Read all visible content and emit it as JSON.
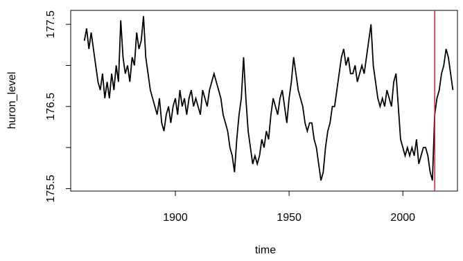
{
  "chart_data": {
    "type": "line",
    "xlabel": "time",
    "ylabel": "huron_level",
    "x": [
      1860,
      1861,
      1862,
      1863,
      1864,
      1865,
      1866,
      1867,
      1868,
      1869,
      1870,
      1871,
      1872,
      1873,
      1874,
      1875,
      1876,
      1877,
      1878,
      1879,
      1880,
      1881,
      1882,
      1883,
      1884,
      1885,
      1886,
      1887,
      1888,
      1889,
      1890,
      1891,
      1892,
      1893,
      1894,
      1895,
      1896,
      1897,
      1898,
      1899,
      1900,
      1901,
      1902,
      1903,
      1904,
      1905,
      1906,
      1907,
      1908,
      1909,
      1910,
      1911,
      1912,
      1913,
      1914,
      1915,
      1916,
      1917,
      1918,
      1919,
      1920,
      1921,
      1922,
      1923,
      1924,
      1925,
      1926,
      1927,
      1928,
      1929,
      1930,
      1931,
      1932,
      1933,
      1934,
      1935,
      1936,
      1937,
      1938,
      1939,
      1940,
      1941,
      1942,
      1943,
      1944,
      1945,
      1946,
      1947,
      1948,
      1949,
      1950,
      1951,
      1952,
      1953,
      1954,
      1955,
      1956,
      1957,
      1958,
      1959,
      1960,
      1961,
      1962,
      1963,
      1964,
      1965,
      1966,
      1967,
      1968,
      1969,
      1970,
      1971,
      1972,
      1973,
      1974,
      1975,
      1976,
      1977,
      1978,
      1979,
      1980,
      1981,
      1982,
      1983,
      1984,
      1985,
      1986,
      1987,
      1988,
      1989,
      1990,
      1991,
      1992,
      1993,
      1994,
      1995,
      1996,
      1997,
      1998,
      1999,
      2000,
      2001,
      2002,
      2003,
      2004,
      2005,
      2006,
      2007,
      2008,
      2009,
      2010,
      2011,
      2012,
      2013,
      2014,
      2015,
      2016,
      2017,
      2018,
      2019,
      2020,
      2021,
      2022
    ],
    "series": [
      {
        "name": "huron_level",
        "color": "#000000",
        "values": [
          177.3,
          177.45,
          177.2,
          177.4,
          177.2,
          177.0,
          176.8,
          176.7,
          176.9,
          176.6,
          176.8,
          176.6,
          176.9,
          176.7,
          177.0,
          176.8,
          177.55,
          177.1,
          176.9,
          177.0,
          176.8,
          177.1,
          177.0,
          177.4,
          177.2,
          177.3,
          177.6,
          177.1,
          176.9,
          176.7,
          176.6,
          176.5,
          176.4,
          176.6,
          176.3,
          176.2,
          176.4,
          176.5,
          176.3,
          176.5,
          176.6,
          176.4,
          176.7,
          176.5,
          176.6,
          176.4,
          176.6,
          176.7,
          176.5,
          176.6,
          176.5,
          176.4,
          176.7,
          176.6,
          176.5,
          176.7,
          176.8,
          176.9,
          176.8,
          176.7,
          176.6,
          176.4,
          176.3,
          176.2,
          176.0,
          175.9,
          175.7,
          176.1,
          176.4,
          176.6,
          177.1,
          176.6,
          176.2,
          176.0,
          175.8,
          175.9,
          175.8,
          175.9,
          176.1,
          176.0,
          176.2,
          176.1,
          176.4,
          176.6,
          176.5,
          176.4,
          176.6,
          176.7,
          176.5,
          176.3,
          176.6,
          176.8,
          177.1,
          176.9,
          176.7,
          176.6,
          176.5,
          176.3,
          176.2,
          176.3,
          176.3,
          176.1,
          176.0,
          175.8,
          175.6,
          175.7,
          176.0,
          176.2,
          176.3,
          176.5,
          176.5,
          176.7,
          176.9,
          177.1,
          177.2,
          177.0,
          177.1,
          176.9,
          176.9,
          177.0,
          176.8,
          176.9,
          177.0,
          176.9,
          177.1,
          177.3,
          177.5,
          177.0,
          176.8,
          176.6,
          176.5,
          176.6,
          176.5,
          176.7,
          176.6,
          176.5,
          176.8,
          176.9,
          176.5,
          176.1,
          176.0,
          175.9,
          176.0,
          175.9,
          176.0,
          175.9,
          176.1,
          175.8,
          175.9,
          176.0,
          176.0,
          175.9,
          175.7,
          175.6,
          176.4,
          176.6,
          176.7,
          176.9,
          177.0,
          177.2,
          177.1,
          176.9,
          176.7
        ]
      }
    ],
    "xlim": [
      1854,
      2024
    ],
    "xticks": [
      1900,
      1950,
      2000
    ],
    "ylim": [
      175.47,
      177.67
    ],
    "yticks": [
      175.5,
      176.5,
      177.5
    ],
    "yticks_unlabeled": [
      176,
      177
    ],
    "vline": 2014,
    "vline_color": "#e31a1c"
  }
}
